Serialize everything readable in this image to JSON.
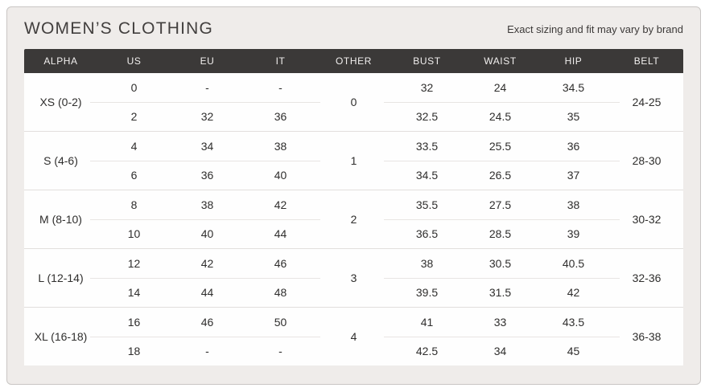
{
  "header": {
    "title": "WOMEN’S CLOTHING",
    "subtitle": "Exact sizing and fit may vary by brand"
  },
  "table": {
    "columns": [
      "ALPHA",
      "US",
      "EU",
      "IT",
      "OTHER",
      "BUST",
      "WAIST",
      "HIP",
      "BELT"
    ],
    "groups": [
      {
        "alpha": "XS (0-2)",
        "other": "0",
        "belt": "24-25",
        "rows": [
          {
            "us": "0",
            "eu": "-",
            "it": "-",
            "bust": "32",
            "waist": "24",
            "hip": "34.5"
          },
          {
            "us": "2",
            "eu": "32",
            "it": "36",
            "bust": "32.5",
            "waist": "24.5",
            "hip": "35"
          }
        ]
      },
      {
        "alpha": "S (4-6)",
        "other": "1",
        "belt": "28-30",
        "rows": [
          {
            "us": "4",
            "eu": "34",
            "it": "38",
            "bust": "33.5",
            "waist": "25.5",
            "hip": "36"
          },
          {
            "us": "6",
            "eu": "36",
            "it": "40",
            "bust": "34.5",
            "waist": "26.5",
            "hip": "37"
          }
        ]
      },
      {
        "alpha": "M (8-10)",
        "other": "2",
        "belt": "30-32",
        "rows": [
          {
            "us": "8",
            "eu": "38",
            "it": "42",
            "bust": "35.5",
            "waist": "27.5",
            "hip": "38"
          },
          {
            "us": "10",
            "eu": "40",
            "it": "44",
            "bust": "36.5",
            "waist": "28.5",
            "hip": "39"
          }
        ]
      },
      {
        "alpha": "L (12-14)",
        "other": "3",
        "belt": "32-36",
        "rows": [
          {
            "us": "12",
            "eu": "42",
            "it": "46",
            "bust": "38",
            "waist": "30.5",
            "hip": "40.5"
          },
          {
            "us": "14",
            "eu": "44",
            "it": "48",
            "bust": "39.5",
            "waist": "31.5",
            "hip": "42"
          }
        ]
      },
      {
        "alpha": "XL (16-18)",
        "other": "4",
        "belt": "36-38",
        "rows": [
          {
            "us": "16",
            "eu": "46",
            "it": "50",
            "bust": "41",
            "waist": "33",
            "hip": "43.5"
          },
          {
            "us": "18",
            "eu": "-",
            "it": "-",
            "bust": "42.5",
            "waist": "34",
            "hip": "45"
          }
        ]
      }
    ]
  },
  "chart_data": {
    "type": "table",
    "title": "WOMEN’S CLOTHING",
    "note": "Exact sizing and fit may vary by brand",
    "columns": [
      "ALPHA",
      "US",
      "EU",
      "IT",
      "OTHER",
      "BUST",
      "WAIST",
      "HIP",
      "BELT"
    ],
    "rows": [
      [
        "XS (0-2)",
        "0",
        "-",
        "-",
        "0",
        "32",
        "24",
        "34.5",
        "24-25"
      ],
      [
        "XS (0-2)",
        "2",
        "32",
        "36",
        "0",
        "32.5",
        "24.5",
        "35",
        "24-25"
      ],
      [
        "S (4-6)",
        "4",
        "34",
        "38",
        "1",
        "33.5",
        "25.5",
        "36",
        "28-30"
      ],
      [
        "S (4-6)",
        "6",
        "36",
        "40",
        "1",
        "34.5",
        "26.5",
        "37",
        "28-30"
      ],
      [
        "M (8-10)",
        "8",
        "38",
        "42",
        "2",
        "35.5",
        "27.5",
        "38",
        "30-32"
      ],
      [
        "M (8-10)",
        "10",
        "40",
        "44",
        "2",
        "36.5",
        "28.5",
        "39",
        "30-32"
      ],
      [
        "L (12-14)",
        "12",
        "42",
        "46",
        "3",
        "38",
        "30.5",
        "40.5",
        "32-36"
      ],
      [
        "L (12-14)",
        "14",
        "44",
        "48",
        "3",
        "39.5",
        "31.5",
        "42",
        "32-36"
      ],
      [
        "XL (16-18)",
        "16",
        "46",
        "50",
        "4",
        "41",
        "33",
        "43.5",
        "36-38"
      ],
      [
        "XL (16-18)",
        "18",
        "-",
        "-",
        "4",
        "42.5",
        "34",
        "45",
        "36-38"
      ]
    ]
  },
  "colors": {
    "card_background": "#efecea",
    "card_border": "#c9c6c4",
    "header_bar_background": "#3b3938",
    "header_bar_text": "#f1efee",
    "row_background": "#fefefe",
    "body_text": "#2f2e2d",
    "group_separator": "#e2dfdd",
    "subrow_divider": "#e8e5e3"
  }
}
